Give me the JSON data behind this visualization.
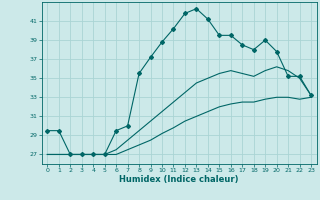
{
  "xlabel": "Humidex (Indice chaleur)",
  "bg_color": "#cce9e9",
  "grid_color": "#aad4d4",
  "line_color": "#006666",
  "xlim": [
    -0.5,
    23.5
  ],
  "ylim": [
    26.0,
    43.0
  ],
  "yticks": [
    27,
    29,
    31,
    33,
    35,
    37,
    39,
    41
  ],
  "xticks": [
    0,
    1,
    2,
    3,
    4,
    5,
    6,
    7,
    8,
    9,
    10,
    11,
    12,
    13,
    14,
    15,
    16,
    17,
    18,
    19,
    20,
    21,
    22,
    23
  ],
  "series1_x": [
    0,
    1,
    2,
    3,
    4,
    5,
    6,
    7,
    8,
    9,
    10,
    11,
    12,
    13,
    14,
    15,
    16,
    17,
    18,
    19,
    20,
    21,
    22,
    23
  ],
  "series1_y": [
    29.5,
    29.5,
    27.0,
    27.0,
    27.0,
    27.0,
    29.5,
    30.0,
    35.5,
    37.2,
    38.8,
    40.2,
    41.8,
    42.3,
    41.2,
    39.5,
    39.5,
    38.5,
    38.0,
    39.0,
    37.8,
    35.2,
    35.2,
    33.2
  ],
  "series2_x": [
    0,
    1,
    2,
    3,
    4,
    5,
    6,
    7,
    8,
    9,
    10,
    11,
    12,
    13,
    14,
    15,
    16,
    17,
    18,
    19,
    20,
    21,
    22,
    23
  ],
  "series2_y": [
    27.0,
    27.0,
    27.0,
    27.0,
    27.0,
    27.0,
    27.5,
    28.5,
    29.5,
    30.5,
    31.5,
    32.5,
    33.5,
    34.5,
    35.0,
    35.5,
    35.8,
    35.5,
    35.2,
    35.8,
    36.2,
    35.8,
    35.0,
    33.2
  ],
  "series3_x": [
    0,
    1,
    2,
    3,
    4,
    5,
    6,
    7,
    8,
    9,
    10,
    11,
    12,
    13,
    14,
    15,
    16,
    17,
    18,
    19,
    20,
    21,
    22,
    23
  ],
  "series3_y": [
    27.0,
    27.0,
    27.0,
    27.0,
    27.0,
    27.0,
    27.0,
    27.5,
    28.0,
    28.5,
    29.2,
    29.8,
    30.5,
    31.0,
    31.5,
    32.0,
    32.3,
    32.5,
    32.5,
    32.8,
    33.0,
    33.0,
    32.8,
    33.0
  ]
}
